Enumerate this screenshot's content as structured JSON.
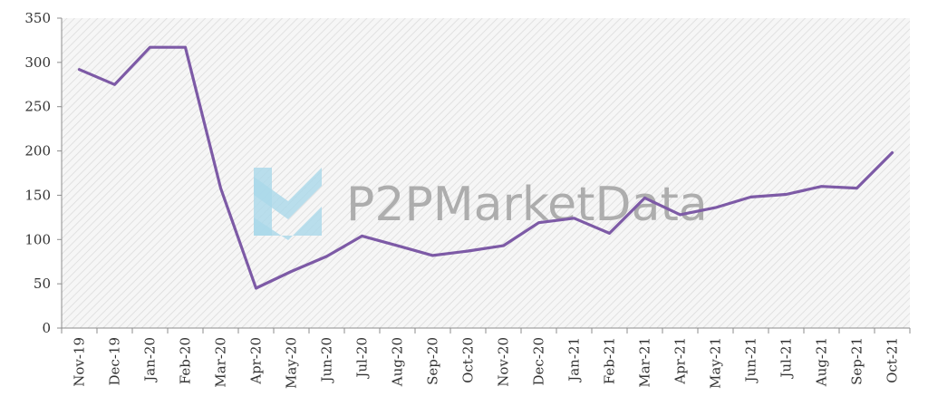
{
  "chart_data": {
    "type": "line",
    "title": "",
    "xlabel": "",
    "ylabel": "",
    "categories": [
      "Nov-19",
      "Dec-19",
      "Jan-20",
      "Feb-20",
      "Mar-20",
      "Apr-20",
      "May-20",
      "Jun-20",
      "Jul-20",
      "Aug-20",
      "Sep-20",
      "Oct-20",
      "Nov-20",
      "Dec-20",
      "Jan-21",
      "Feb-21",
      "Mar-21",
      "Apr-21",
      "May-21",
      "Jun-21",
      "Jul-21",
      "Aug-21",
      "Sep-21",
      "Oct-21"
    ],
    "series": [
      {
        "values": [
          292,
          275,
          317,
          317,
          158,
          45,
          64,
          81,
          104,
          93,
          82,
          87,
          93,
          119,
          124,
          107,
          147,
          128,
          136,
          148,
          151,
          160,
          158,
          198
        ],
        "color": "#7d5aa6"
      }
    ],
    "ylim": [
      0,
      350
    ],
    "yticks": [
      0,
      50,
      100,
      150,
      200,
      250,
      300,
      350
    ],
    "grid": false,
    "legend": "none",
    "plot_background": "hatched light gray"
  },
  "watermark": {
    "text": "P2PMarketData",
    "logo_color": "#aad8ea",
    "text_color": "#9a9a9a"
  }
}
